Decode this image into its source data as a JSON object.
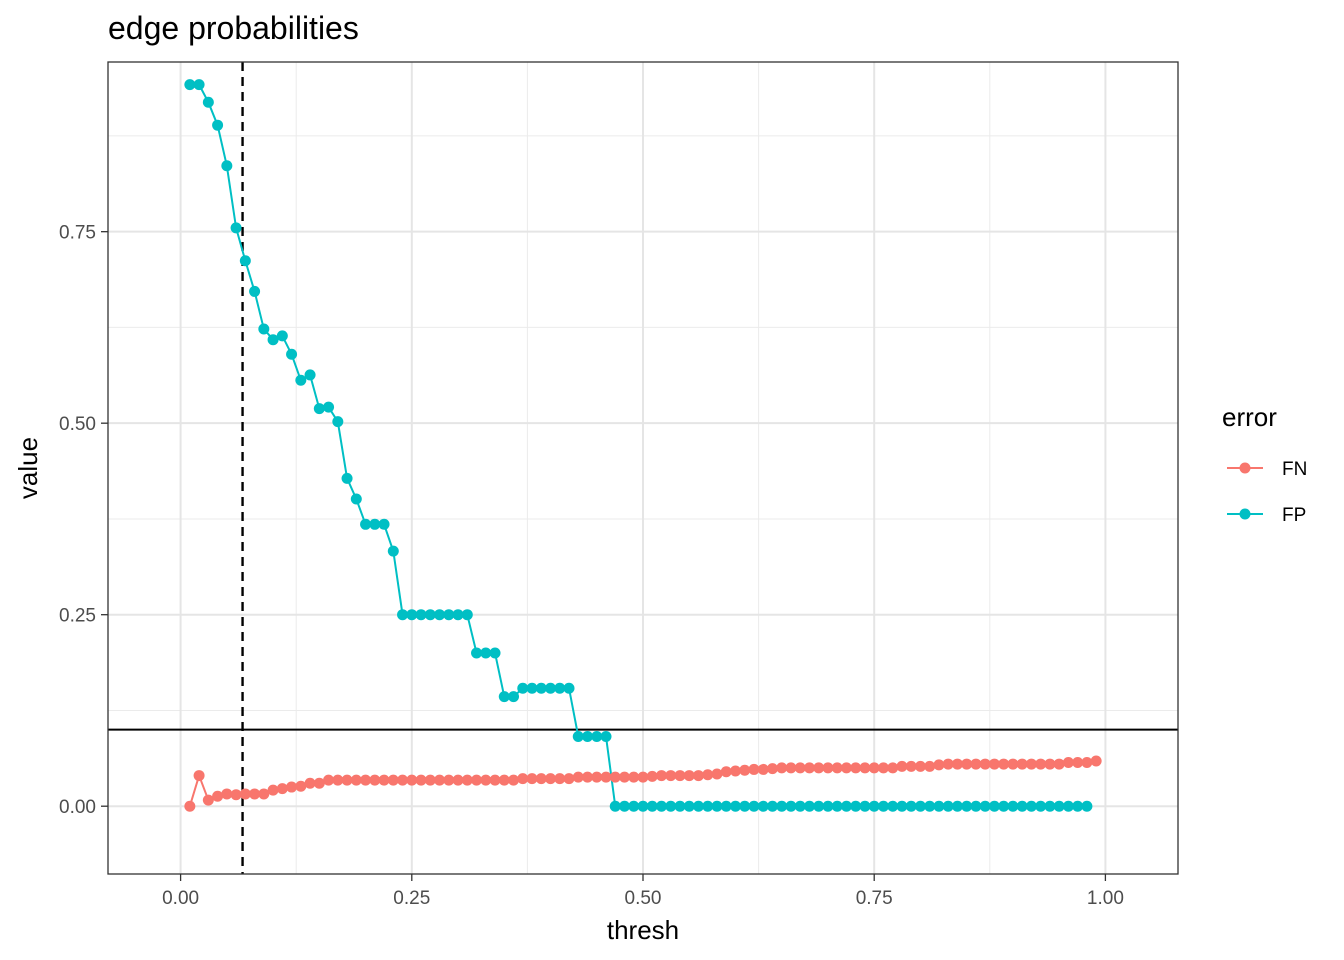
{
  "chart_data": {
    "type": "line",
    "title": "edge probabilities",
    "xlabel": "thresh",
    "ylabel": "value",
    "xlim": [
      -0.0785,
      1.0785
    ],
    "ylim": [
      -0.0885,
      0.9715
    ],
    "xticks": [
      0.0,
      0.25,
      0.5,
      0.75,
      1.0
    ],
    "xtick_labels": [
      "0.00",
      "0.25",
      "0.50",
      "0.75",
      "1.00"
    ],
    "yticks": [
      0.0,
      0.25,
      0.5,
      0.75
    ],
    "ytick_labels": [
      "0.00",
      "0.25",
      "0.50",
      "0.75"
    ],
    "grid": true,
    "legend": {
      "title": "error",
      "position": "right"
    },
    "reference_lines": [
      {
        "orientation": "vertical",
        "value": 0.067,
        "style": "dashed",
        "color": "#000000"
      },
      {
        "orientation": "horizontal",
        "value": 0.1,
        "style": "solid",
        "color": "#000000"
      }
    ],
    "series": [
      {
        "name": "FN",
        "color": "#F8766D",
        "x": [
          0.01,
          0.02,
          0.03,
          0.04,
          0.05,
          0.06,
          0.07,
          0.08,
          0.09,
          0.1,
          0.11,
          0.12,
          0.13,
          0.14,
          0.15,
          0.16,
          0.17,
          0.18,
          0.19,
          0.2,
          0.21,
          0.22,
          0.23,
          0.24,
          0.25,
          0.26,
          0.27,
          0.28,
          0.29,
          0.3,
          0.31,
          0.32,
          0.33,
          0.34,
          0.35,
          0.36,
          0.37,
          0.38,
          0.39,
          0.4,
          0.41,
          0.42,
          0.43,
          0.44,
          0.45,
          0.46,
          0.47,
          0.48,
          0.49,
          0.5,
          0.51,
          0.52,
          0.53,
          0.54,
          0.55,
          0.56,
          0.57,
          0.58,
          0.59,
          0.6,
          0.61,
          0.62,
          0.63,
          0.64,
          0.65,
          0.66,
          0.67,
          0.68,
          0.69,
          0.7,
          0.71,
          0.72,
          0.73,
          0.74,
          0.75,
          0.76,
          0.77,
          0.78,
          0.79,
          0.8,
          0.81,
          0.82,
          0.83,
          0.84,
          0.85,
          0.86,
          0.87,
          0.88,
          0.89,
          0.9,
          0.91,
          0.92,
          0.93,
          0.94,
          0.95,
          0.96,
          0.97,
          0.98,
          0.99
        ],
        "values": [
          0.0,
          0.04,
          0.008,
          0.013,
          0.016,
          0.015,
          0.016,
          0.016,
          0.016,
          0.021,
          0.023,
          0.025,
          0.026,
          0.03,
          0.03,
          0.034,
          0.034,
          0.034,
          0.034,
          0.034,
          0.034,
          0.034,
          0.034,
          0.034,
          0.034,
          0.034,
          0.034,
          0.034,
          0.034,
          0.034,
          0.034,
          0.034,
          0.034,
          0.034,
          0.034,
          0.034,
          0.036,
          0.036,
          0.036,
          0.036,
          0.036,
          0.036,
          0.038,
          0.038,
          0.038,
          0.038,
          0.038,
          0.038,
          0.038,
          0.038,
          0.039,
          0.04,
          0.04,
          0.04,
          0.04,
          0.04,
          0.041,
          0.042,
          0.045,
          0.046,
          0.047,
          0.048,
          0.048,
          0.049,
          0.05,
          0.05,
          0.05,
          0.05,
          0.05,
          0.05,
          0.05,
          0.05,
          0.05,
          0.05,
          0.05,
          0.05,
          0.05,
          0.052,
          0.052,
          0.052,
          0.052,
          0.054,
          0.055,
          0.055,
          0.055,
          0.055,
          0.055,
          0.055,
          0.055,
          0.055,
          0.055,
          0.055,
          0.055,
          0.055,
          0.055,
          0.057,
          0.057,
          0.057,
          0.059
        ]
      },
      {
        "name": "FP",
        "color": "#00BFC4",
        "x": [
          0.01,
          0.02,
          0.03,
          0.04,
          0.05,
          0.06,
          0.07,
          0.08,
          0.09,
          0.1,
          0.11,
          0.12,
          0.13,
          0.14,
          0.15,
          0.16,
          0.17,
          0.18,
          0.19,
          0.2,
          0.21,
          0.22,
          0.23,
          0.24,
          0.25,
          0.26,
          0.27,
          0.28,
          0.29,
          0.3,
          0.31,
          0.32,
          0.33,
          0.34,
          0.35,
          0.36,
          0.37,
          0.38,
          0.39,
          0.4,
          0.41,
          0.42,
          0.43,
          0.44,
          0.45,
          0.46,
          0.47,
          0.48,
          0.49,
          0.5,
          0.51,
          0.52,
          0.53,
          0.54,
          0.55,
          0.56,
          0.57,
          0.58,
          0.59,
          0.6,
          0.61,
          0.62,
          0.63,
          0.64,
          0.65,
          0.66,
          0.67,
          0.68,
          0.69,
          0.7,
          0.71,
          0.72,
          0.73,
          0.74,
          0.75,
          0.76,
          0.77,
          0.78,
          0.79,
          0.8,
          0.81,
          0.82,
          0.83,
          0.84,
          0.85,
          0.86,
          0.87,
          0.88,
          0.89,
          0.9,
          0.91,
          0.92,
          0.93,
          0.94,
          0.95,
          0.96,
          0.97,
          0.98
        ],
        "values": [
          0.942,
          0.942,
          0.919,
          0.889,
          0.836,
          0.755,
          0.712,
          0.672,
          0.623,
          0.609,
          0.614,
          0.59,
          0.556,
          0.563,
          0.519,
          0.521,
          0.502,
          0.428,
          0.401,
          0.368,
          0.368,
          0.368,
          0.333,
          0.25,
          0.25,
          0.25,
          0.25,
          0.25,
          0.25,
          0.25,
          0.25,
          0.2,
          0.2,
          0.2,
          0.143,
          0.143,
          0.154,
          0.154,
          0.154,
          0.154,
          0.154,
          0.154,
          0.091,
          0.091,
          0.091,
          0.091,
          0.0,
          0.0,
          0.0,
          0.0,
          0.0,
          0.0,
          0.0,
          0.0,
          0.0,
          0.0,
          0.0,
          0.0,
          0.0,
          0.0,
          0.0,
          0.0,
          0.0,
          0.0,
          0.0,
          0.0,
          0.0,
          0.0,
          0.0,
          0.0,
          0.0,
          0.0,
          0.0,
          0.0,
          0.0,
          0.0,
          0.0,
          0.0,
          0.0,
          0.0,
          0.0,
          0.0,
          0.0,
          0.0,
          0.0,
          0.0,
          0.0,
          0.0,
          0.0,
          0.0,
          0.0,
          0.0,
          0.0,
          0.0,
          0.0,
          0.0,
          0.0,
          0.0
        ]
      }
    ]
  }
}
